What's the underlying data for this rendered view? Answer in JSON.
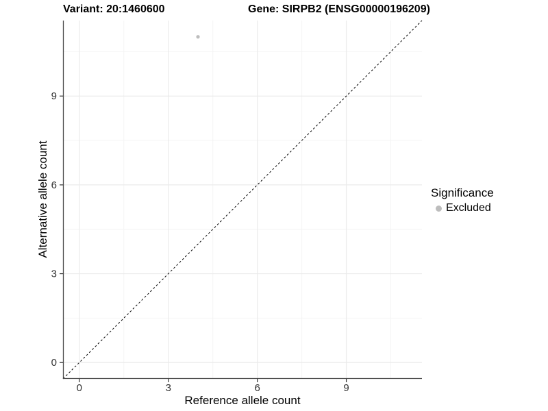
{
  "chart_data": {
    "type": "scatter",
    "title_left": "Variant: 20:1460600",
    "title_right": "Gene: SIRPB2 (ENSG00000196209)",
    "xlabel": "Reference allele count",
    "ylabel": "Alternative allele count",
    "xlim": [
      -0.55,
      11.55
    ],
    "ylim": [
      -0.55,
      11.55
    ],
    "xticks": [
      0,
      3,
      6,
      9
    ],
    "yticks": [
      0,
      3,
      6,
      9
    ],
    "xticks_minor": [
      1.5,
      4.5,
      7.5,
      10.5
    ],
    "yticks_minor": [
      1.5,
      4.5,
      7.5,
      10.5
    ],
    "grid": true,
    "identity_line": {
      "slope": 1,
      "intercept": 0,
      "style": "dashed",
      "color": "#000000"
    },
    "points": [
      {
        "x": 4,
        "y": 11,
        "series": "Excluded"
      }
    ],
    "legend": {
      "position": "right",
      "title": "Significance",
      "items": [
        {
          "label": "Excluded",
          "color": "#bdbdbd"
        }
      ]
    },
    "colors": {
      "point": "#bdbdbd",
      "grid_major": "#ebebeb",
      "grid_minor": "#f4f4f4",
      "axis_line": "#474747",
      "tick": "#333333",
      "tick_label": "#303030",
      "text": "#000000",
      "background": "#ffffff"
    }
  }
}
